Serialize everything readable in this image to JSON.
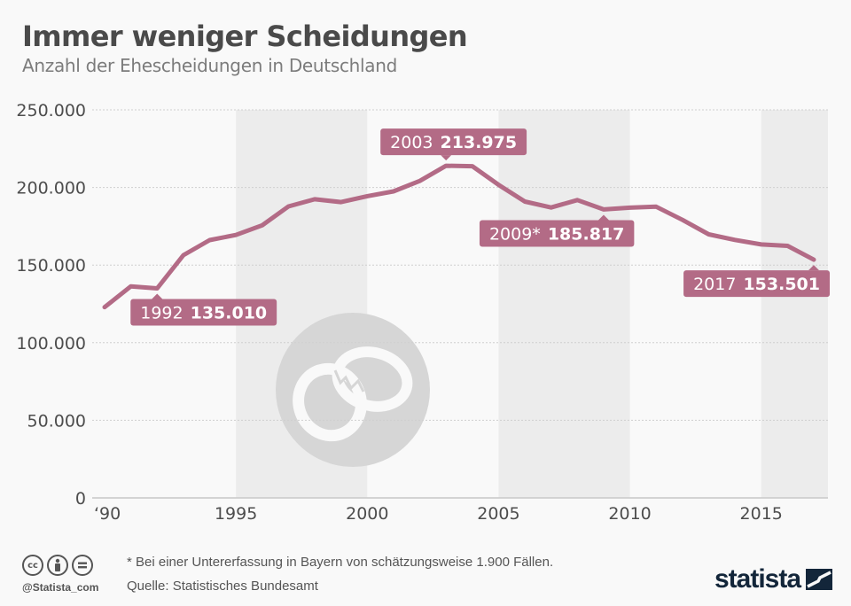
{
  "header": {
    "title": "Immer weniger Scheidungen",
    "subtitle": "Anzahl der Ehescheidungen in Deutschland"
  },
  "colors": {
    "line": "#b36b86",
    "callout_bg": "#b36b86",
    "band": "#ececec",
    "watermark": "#d6d6d6",
    "text": "#4d4d4d",
    "brand": "#13263a"
  },
  "chart_data": {
    "type": "line",
    "title": "Immer weniger Scheidungen",
    "subtitle": "Anzahl der Ehescheidungen in Deutschland",
    "xlabel": "",
    "ylabel": "",
    "x": [
      1990,
      1991,
      1992,
      1993,
      1994,
      1995,
      1996,
      1997,
      1998,
      1999,
      2000,
      2001,
      2002,
      2003,
      2004,
      2005,
      2006,
      2007,
      2008,
      2009,
      2010,
      2011,
      2012,
      2013,
      2014,
      2015,
      2016,
      2017
    ],
    "series": [
      {
        "name": "Ehescheidungen",
        "values": [
          122900,
          136300,
          135010,
          156400,
          166100,
          169400,
          175600,
          187800,
          192400,
          190600,
          194400,
          197500,
          204200,
          213975,
          213700,
          201700,
          190900,
          187100,
          191900,
          185817,
          187000,
          187600,
          179100,
          169800,
          166200,
          163300,
          162400,
          153501
        ]
      }
    ],
    "xlim": [
      1990,
      2017
    ],
    "ylim": [
      0,
      250000
    ],
    "y_ticks": [
      {
        "value": 0,
        "label": "0"
      },
      {
        "value": 50000,
        "label": "50.000"
      },
      {
        "value": 100000,
        "label": "100.000"
      },
      {
        "value": 150000,
        "label": "150.000"
      },
      {
        "value": 200000,
        "label": "200.000"
      },
      {
        "value": 250000,
        "label": "250.000"
      }
    ],
    "x_ticks": [
      {
        "value": 1990,
        "label": "‘90"
      },
      {
        "value": 1995,
        "label": "1995"
      },
      {
        "value": 2000,
        "label": "2000"
      },
      {
        "value": 2005,
        "label": "2005"
      },
      {
        "value": 2010,
        "label": "2010"
      },
      {
        "value": 2015,
        "label": "2015"
      }
    ],
    "shaded_bands": [
      [
        1995,
        2000
      ],
      [
        2005,
        2010
      ],
      [
        2015,
        2018
      ]
    ],
    "grid": true,
    "legend": "none",
    "annotations": [
      {
        "year": 1992,
        "year_label": "1992",
        "value_label": "135.010",
        "position": "below"
      },
      {
        "year": 2003,
        "year_label": "2003",
        "value_label": "213.975",
        "position": "above"
      },
      {
        "year": 2009,
        "year_label": "2009*",
        "value_label": "185.817",
        "position": "below"
      },
      {
        "year": 2017,
        "year_label": "2017",
        "value_label": "153.501",
        "position": "below"
      }
    ]
  },
  "footer": {
    "note": "* Bei einer Untererfassung in Bayern von schätzungsweise 1.900 Fällen.",
    "source": "Quelle: Statistisches Bundesamt",
    "handle": "@Statista_com",
    "brand": "statista",
    "license_icons": [
      "cc",
      "by",
      "nd"
    ]
  }
}
